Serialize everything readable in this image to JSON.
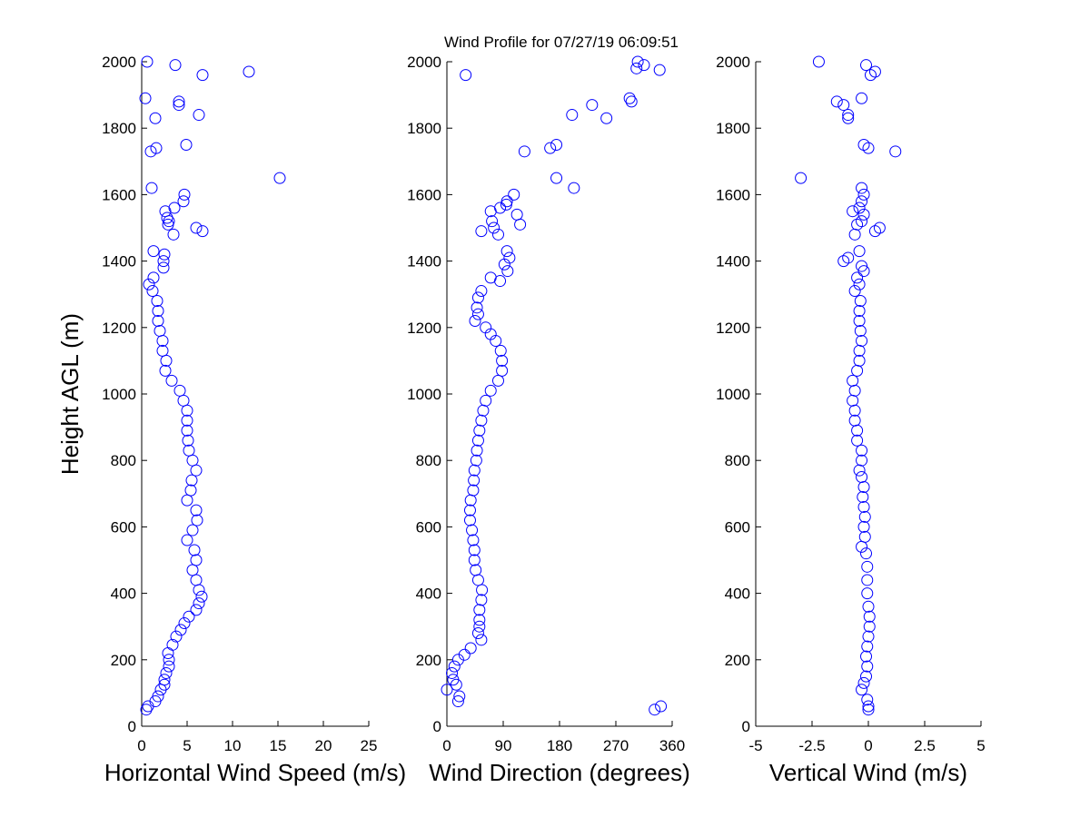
{
  "title": "Wind Profile for  07/27/19 06:09:51",
  "chart_data": [
    {
      "type": "scatter",
      "xlabel": "Horizontal Wind Speed (m/s)",
      "ylabel": "Height AGL (m)",
      "color": "#0000ff",
      "xlim": [
        0,
        25
      ],
      "xticks": [
        0,
        5,
        10,
        15,
        20,
        25
      ],
      "ylim": [
        0,
        2000
      ],
      "yticks": [
        0,
        200,
        400,
        600,
        800,
        1000,
        1200,
        1400,
        1600,
        1800,
        2000
      ],
      "x": [
        0.5,
        0.7,
        1.5,
        1.8,
        2.1,
        2.5,
        2.5,
        2.7,
        3.0,
        3.0,
        2.9,
        3.4,
        3.8,
        4.3,
        4.7,
        5.2,
        6.0,
        6.3,
        6.6,
        6.3,
        6.0,
        5.6,
        6.0,
        5.8,
        5.0,
        5.6,
        6.1,
        6.0,
        5.0,
        5.4,
        5.5,
        6.0,
        5.6,
        5.2,
        5.1,
        5.0,
        5.0,
        5.0,
        4.6,
        4.2,
        3.3,
        2.6,
        2.7,
        2.3,
        2.3,
        2.0,
        1.8,
        1.8,
        1.7,
        1.2,
        0.8,
        1.3,
        2.4,
        2.4,
        2.5,
        1.3,
        3.5,
        6.7,
        6.0,
        2.9,
        3.0,
        2.8,
        2.6,
        3.6,
        4.6,
        4.7,
        1.1,
        15.2,
        1.0,
        1.6,
        4.9,
        1.5,
        6.3,
        4.1,
        4.1,
        0.4,
        6.7,
        11.8,
        3.7,
        0.6
      ],
      "y": [
        50,
        60,
        75,
        90,
        110,
        125,
        140,
        160,
        180,
        200,
        220,
        245,
        270,
        290,
        310,
        330,
        350,
        370,
        390,
        410,
        440,
        470,
        500,
        530,
        560,
        590,
        620,
        650,
        680,
        710,
        740,
        770,
        800,
        830,
        860,
        890,
        920,
        950,
        980,
        1010,
        1040,
        1070,
        1100,
        1130,
        1160,
        1190,
        1220,
        1250,
        1280,
        1310,
        1330,
        1350,
        1380,
        1400,
        1420,
        1430,
        1480,
        1490,
        1500,
        1510,
        1520,
        1530,
        1550,
        1560,
        1580,
        1600,
        1620,
        1650,
        1730,
        1740,
        1750,
        1830,
        1840,
        1870,
        1880,
        1890,
        1960,
        1970,
        1990,
        2000
      ]
    },
    {
      "type": "scatter",
      "xlabel": "Wind Direction (degrees)",
      "color": "#0000ff",
      "xlim": [
        0,
        360
      ],
      "xticks": [
        0,
        90,
        180,
        270,
        360
      ],
      "ylim": [
        0,
        2000
      ],
      "yticks": [
        0,
        200,
        400,
        600,
        800,
        1000,
        1200,
        1400,
        1600,
        1800,
        2000
      ],
      "x": [
        332,
        342,
        18,
        20,
        0,
        15,
        10,
        8,
        12,
        18,
        28,
        38,
        55,
        50,
        52,
        52,
        52,
        55,
        56,
        50,
        46,
        44,
        44,
        42,
        40,
        37,
        37,
        38,
        42,
        43,
        44,
        47,
        48,
        50,
        52,
        55,
        58,
        62,
        70,
        82,
        88,
        88,
        86,
        78,
        70,
        62,
        45,
        50,
        48,
        50,
        55,
        85,
        70,
        97,
        92,
        100,
        96,
        82,
        55,
        75,
        117,
        72,
        112,
        70,
        85,
        95,
        96,
        107,
        203,
        175,
        124,
        165,
        175,
        255,
        200,
        232,
        295,
        292,
        30,
        340,
        303,
        315,
        305
      ],
      "y": [
        50,
        60,
        75,
        90,
        110,
        125,
        140,
        160,
        180,
        200,
        215,
        235,
        260,
        280,
        300,
        320,
        350,
        380,
        410,
        440,
        470,
        500,
        530,
        560,
        590,
        620,
        650,
        680,
        710,
        740,
        770,
        800,
        830,
        860,
        890,
        920,
        950,
        980,
        1010,
        1040,
        1070,
        1100,
        1130,
        1160,
        1180,
        1200,
        1220,
        1240,
        1260,
        1290,
        1310,
        1340,
        1350,
        1370,
        1390,
        1410,
        1430,
        1480,
        1490,
        1500,
        1510,
        1520,
        1540,
        1550,
        1560,
        1570,
        1580,
        1600,
        1620,
        1650,
        1730,
        1740,
        1750,
        1830,
        1840,
        1870,
        1880,
        1890,
        1960,
        1975,
        1980,
        1990,
        2000
      ]
    },
    {
      "type": "scatter",
      "xlabel": "Vertical Wind (m/s)",
      "color": "#0000ff",
      "xlim": [
        -5,
        5
      ],
      "xticks": [
        -5,
        -2.5,
        0,
        2.5,
        5
      ],
      "ylim": [
        0,
        2000
      ],
      "yticks": [
        0,
        200,
        400,
        600,
        800,
        1000,
        1200,
        1400,
        1600,
        1800,
        2000
      ],
      "x": [
        0,
        0,
        -0.05,
        -0.3,
        -0.2,
        -0.1,
        -0.05,
        -0.1,
        -0.05,
        0,
        0.05,
        0.05,
        0,
        -0.05,
        -0.05,
        -0.05,
        -0.1,
        -0.3,
        -0.15,
        -0.2,
        -0.15,
        -0.2,
        -0.25,
        -0.2,
        -0.3,
        -0.4,
        -0.3,
        -0.3,
        -0.5,
        -0.5,
        -0.6,
        -0.6,
        -0.7,
        -0.6,
        -0.7,
        -0.5,
        -0.4,
        -0.4,
        -0.3,
        -0.35,
        -0.4,
        -0.4,
        -0.35,
        -0.6,
        -0.4,
        -0.5,
        -0.2,
        -0.3,
        -1.1,
        -0.9,
        -0.4,
        -0.6,
        0.3,
        0.5,
        -0.5,
        -0.3,
        -0.2,
        -0.7,
        -0.4,
        -0.3,
        -0.2,
        -0.3,
        -3.0,
        1.2,
        0,
        -0.2,
        -0.9,
        -0.9,
        -1.1,
        -1.4,
        -0.3,
        0.1,
        0.3,
        -0.1,
        -2.2
      ],
      "y": [
        50,
        60,
        80,
        110,
        130,
        150,
        180,
        210,
        240,
        270,
        300,
        330,
        360,
        400,
        440,
        480,
        520,
        540,
        570,
        600,
        630,
        660,
        690,
        720,
        750,
        770,
        800,
        830,
        860,
        890,
        920,
        950,
        980,
        1010,
        1040,
        1070,
        1100,
        1130,
        1160,
        1190,
        1220,
        1250,
        1280,
        1310,
        1330,
        1350,
        1370,
        1385,
        1400,
        1410,
        1430,
        1480,
        1490,
        1500,
        1510,
        1520,
        1540,
        1550,
        1560,
        1580,
        1600,
        1620,
        1650,
        1730,
        1740,
        1750,
        1830,
        1840,
        1870,
        1880,
        1890,
        1960,
        1970,
        1990,
        2000
      ]
    }
  ]
}
